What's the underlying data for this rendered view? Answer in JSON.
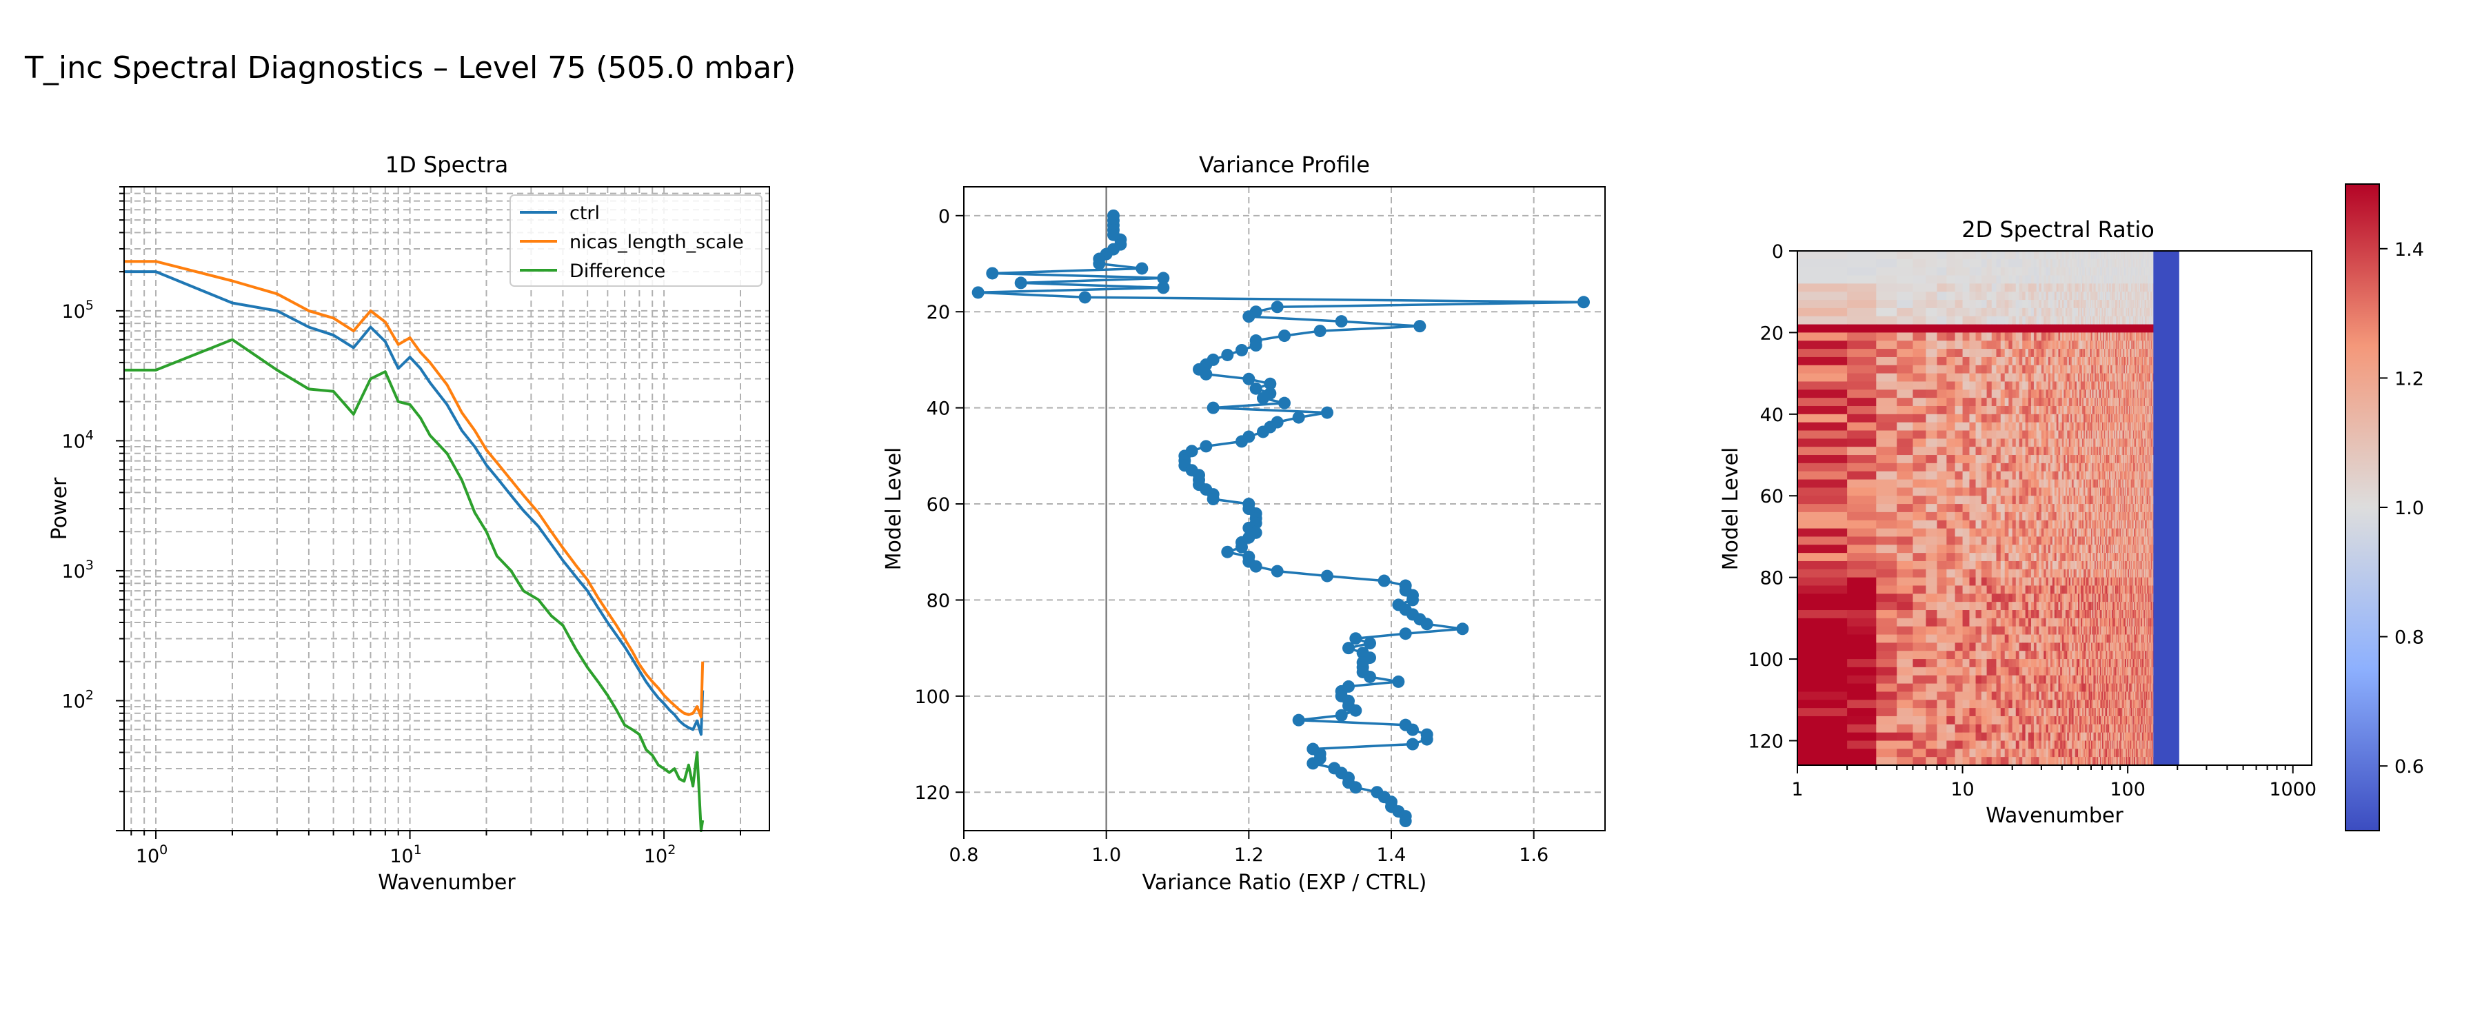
{
  "figure": {
    "suptitle": "T_inc Spectral Diagnostics – Level 75 (505.0 mbar)"
  },
  "chart_data": [
    {
      "type": "line",
      "title": "1D Spectra",
      "xlabel": "Wavenumber",
      "ylabel": "Power",
      "xscale": "log",
      "yscale": "log",
      "xlim": [
        0.75,
        260
      ],
      "ylim": [
        10,
        900000
      ],
      "grid": true,
      "legend": "top-right",
      "xticks": [
        {
          "v": 1,
          "b": "10",
          "e": "0"
        },
        {
          "v": 10,
          "b": "10",
          "e": "1"
        },
        {
          "v": 100,
          "b": "10",
          "e": "2"
        }
      ],
      "yticks": [
        {
          "v": 100,
          "b": "10",
          "e": "2"
        },
        {
          "v": 1000,
          "b": "10",
          "e": "3"
        },
        {
          "v": 10000,
          "b": "10",
          "e": "4"
        },
        {
          "v": 100000,
          "b": "10",
          "e": "5"
        }
      ],
      "series": [
        {
          "name": "ctrl",
          "color": "#1f77b4",
          "x": [
            0,
            1,
            2,
            3,
            4,
            5,
            6,
            7,
            8,
            9,
            10,
            11,
            12,
            14,
            16,
            18,
            20,
            22,
            25,
            28,
            32,
            36,
            40,
            45,
            50,
            55,
            60,
            65,
            70,
            75,
            80,
            85,
            90,
            95,
            100,
            105,
            110,
            115,
            120,
            125,
            130,
            135,
            140,
            142
          ],
          "y": [
            200000,
            200000,
            115000,
            100000,
            75000,
            65000,
            52000,
            75000,
            58000,
            36000,
            44000,
            36000,
            28000,
            19000,
            12000,
            9000,
            6500,
            5200,
            3800,
            2900,
            2200,
            1600,
            1200,
            900,
            700,
            520,
            400,
            320,
            260,
            210,
            170,
            140,
            120,
            105,
            95,
            85,
            78,
            70,
            65,
            62,
            60,
            70,
            55,
            120
          ]
        },
        {
          "name": "nicas_length_scale",
          "color": "#ff7f0e",
          "x": [
            0,
            1,
            2,
            3,
            4,
            5,
            6,
            7,
            8,
            9,
            10,
            11,
            12,
            14,
            16,
            18,
            20,
            22,
            25,
            28,
            32,
            36,
            40,
            45,
            50,
            55,
            60,
            65,
            70,
            75,
            80,
            85,
            90,
            95,
            100,
            105,
            110,
            115,
            120,
            125,
            130,
            135,
            140,
            142
          ],
          "y": [
            240000,
            240000,
            170000,
            135000,
            100000,
            88000,
            70000,
            100000,
            82000,
            55000,
            62000,
            48000,
            40000,
            27000,
            16500,
            12000,
            8500,
            6800,
            5000,
            3800,
            2800,
            2000,
            1500,
            1100,
            850,
            620,
            480,
            380,
            300,
            240,
            190,
            160,
            140,
            125,
            110,
            100,
            92,
            85,
            80,
            78,
            80,
            90,
            75,
            200
          ]
        },
        {
          "name": "Difference",
          "color": "#2ca02c",
          "x": [
            0,
            1,
            2,
            3,
            4,
            5,
            6,
            7,
            8,
            9,
            10,
            11,
            12,
            14,
            16,
            18,
            20,
            22,
            25,
            28,
            32,
            36,
            40,
            45,
            50,
            55,
            60,
            65,
            70,
            75,
            80,
            85,
            90,
            95,
            100,
            105,
            110,
            115,
            120,
            125,
            130,
            135,
            140,
            142
          ],
          "y": [
            35000,
            35000,
            60000,
            35000,
            25000,
            24000,
            16000,
            30000,
            34000,
            20000,
            19000,
            15000,
            11000,
            8000,
            5000,
            2800,
            2000,
            1300,
            1000,
            700,
            600,
            450,
            380,
            250,
            180,
            140,
            110,
            85,
            65,
            60,
            55,
            42,
            38,
            32,
            30,
            28,
            30,
            25,
            24,
            32,
            22,
            40,
            10,
            12
          ]
        }
      ]
    },
    {
      "type": "line",
      "title": "Variance Profile",
      "xlabel": "Variance Ratio (EXP / CTRL)",
      "ylabel": "Model Level",
      "xlim": [
        0.8,
        1.7
      ],
      "ylim": [
        128,
        -6
      ],
      "xticks": [
        0.8,
        1.0,
        1.2,
        1.4,
        1.6
      ],
      "yticks": [
        0,
        20,
        40,
        60,
        80,
        100,
        120
      ],
      "grid": true,
      "reference_line_x": 1.0,
      "series": [
        {
          "name": "",
          "color": "#1f77b4",
          "levels": [
            0,
            1,
            2,
            3,
            4,
            5,
            6,
            7,
            8,
            9,
            10,
            11,
            12,
            13,
            14,
            15,
            16,
            17,
            18,
            19,
            20,
            21,
            22,
            23,
            24,
            25,
            26,
            27,
            28,
            29,
            30,
            31,
            32,
            33,
            34,
            35,
            36,
            37,
            38,
            39,
            40,
            41,
            42,
            43,
            44,
            45,
            46,
            47,
            48,
            49,
            50,
            51,
            52,
            53,
            54,
            55,
            56,
            57,
            58,
            59,
            60,
            61,
            62,
            63,
            64,
            65,
            66,
            67,
            68,
            69,
            70,
            71,
            72,
            73,
            74,
            75,
            76,
            77,
            78,
            79,
            80,
            81,
            82,
            83,
            84,
            85,
            86,
            87,
            88,
            89,
            90,
            91,
            92,
            93,
            94,
            95,
            96,
            97,
            98,
            99,
            100,
            101,
            102,
            103,
            104,
            105,
            106,
            107,
            108,
            109,
            110,
            111,
            112,
            113,
            114,
            115,
            116,
            117,
            118,
            119,
            120,
            121,
            122,
            123,
            124,
            125,
            126
          ],
          "ratio": [
            1.01,
            1.01,
            1.01,
            1.01,
            1.01,
            1.02,
            1.02,
            1.01,
            1.0,
            0.99,
            0.99,
            1.05,
            0.84,
            1.08,
            0.88,
            1.08,
            0.82,
            0.97,
            1.67,
            1.24,
            1.21,
            1.2,
            1.33,
            1.44,
            1.3,
            1.25,
            1.21,
            1.21,
            1.19,
            1.17,
            1.15,
            1.14,
            1.13,
            1.14,
            1.2,
            1.23,
            1.21,
            1.23,
            1.22,
            1.25,
            1.15,
            1.31,
            1.27,
            1.24,
            1.23,
            1.22,
            1.2,
            1.19,
            1.14,
            1.12,
            1.11,
            1.11,
            1.11,
            1.12,
            1.13,
            1.13,
            1.13,
            1.14,
            1.15,
            1.15,
            1.2,
            1.2,
            1.21,
            1.21,
            1.21,
            1.2,
            1.21,
            1.2,
            1.19,
            1.19,
            1.17,
            1.2,
            1.2,
            1.21,
            1.24,
            1.31,
            1.39,
            1.42,
            1.42,
            1.43,
            1.43,
            1.41,
            1.42,
            1.43,
            1.44,
            1.45,
            1.5,
            1.42,
            1.35,
            1.37,
            1.34,
            1.36,
            1.37,
            1.36,
            1.36,
            1.36,
            1.37,
            1.41,
            1.34,
            1.33,
            1.33,
            1.34,
            1.34,
            1.35,
            1.33,
            1.27,
            1.42,
            1.43,
            1.45,
            1.45,
            1.43,
            1.29,
            1.3,
            1.3,
            1.29,
            1.32,
            1.33,
            1.34,
            1.34,
            1.35,
            1.38,
            1.39,
            1.4,
            1.4,
            1.41,
            1.42,
            1.42
          ]
        }
      ]
    },
    {
      "type": "heatmap",
      "title": "2D Spectral Ratio",
      "xlabel": "Wavenumber",
      "ylabel": "Model Level",
      "xscale": "log",
      "xlim": [
        1,
        1300
      ],
      "ylim": [
        126,
        0
      ],
      "xticks": [
        {
          "v": 1,
          "label": "1"
        },
        {
          "v": 10,
          "label": "10"
        },
        {
          "v": 100,
          "label": "100"
        },
        {
          "v": 1000,
          "label": "1000"
        }
      ],
      "yticks": [
        0,
        20,
        40,
        60,
        80,
        100,
        120
      ],
      "colormap": "coolwarm",
      "vmin": 0.5,
      "vmax": 1.5,
      "colorbar_ticks": [
        {
          "v": 0.6,
          "label": "0.6"
        },
        {
          "v": 0.8,
          "label": "0.8"
        },
        {
          "v": 1.0,
          "label": "1.0"
        },
        {
          "v": 1.2,
          "label": "1.2"
        },
        {
          "v": 1.4,
          "label": "1.4"
        }
      ],
      "data_x_extent": [
        1,
        143
      ],
      "low_band": {
        "x": [
          143,
          205
        ],
        "value": 0.5
      },
      "bands": [
        {
          "levels": [
            0,
            8
          ],
          "ratio": 1.0
        },
        {
          "levels": [
            8,
            17
          ],
          "ratio": 1.03
        },
        {
          "levels": [
            17,
            19
          ],
          "ratio": 1.5
        },
        {
          "levels": [
            19,
            80
          ],
          "ratio": 1.28
        },
        {
          "levels": [
            80,
            126
          ],
          "ratio": 1.33
        }
      ]
    }
  ]
}
